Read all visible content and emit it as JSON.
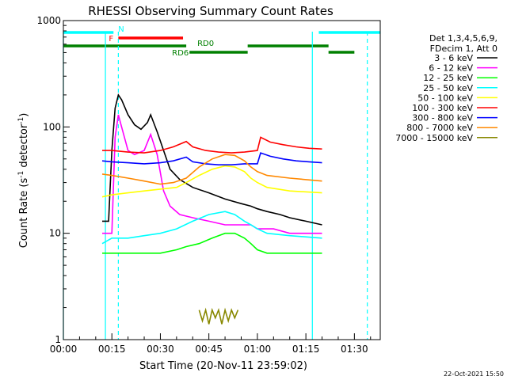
{
  "chart_data": {
    "type": "line",
    "title": "RHESSI Observing Summary Count Rates",
    "xlabel": "Start Time (20-Nov-11 23:59:02)",
    "ylabel_main": "Count Rate (s",
    "ylabel_sup1": "-1",
    "ylabel_mid": " detector",
    "ylabel_sup2": "-1",
    "ylabel_end": ")",
    "y_scale": "log",
    "ylim": [
      1,
      1000
    ],
    "xlim_minutes": [
      0,
      98
    ],
    "x_ticks": [
      {
        "label": "00:00",
        "min": 0
      },
      {
        "label": "00:15",
        "min": 15
      },
      {
        "label": "00:30",
        "min": 30
      },
      {
        "label": "00:45",
        "min": 45
      },
      {
        "label": "01:00",
        "min": 60
      },
      {
        "label": "01:15",
        "min": 75
      },
      {
        "label": "01:30",
        "min": 90
      }
    ],
    "y_ticks": [
      {
        "label": "1",
        "value": 1
      },
      {
        "label": "10",
        "value": 10
      },
      {
        "label": "100",
        "value": 100
      },
      {
        "label": "1000",
        "value": 1000
      }
    ],
    "legend_header": [
      "Det 1,3,4,5,6,9,",
      "FDecim 1, Att 0"
    ],
    "legend_position": "right",
    "series": [
      {
        "name": "3 - 6 keV",
        "color": "#000000",
        "points": [
          [
            12,
            13
          ],
          [
            14,
            13
          ],
          [
            15,
            60
          ],
          [
            16,
            150
          ],
          [
            17,
            200
          ],
          [
            18,
            180
          ],
          [
            20,
            130
          ],
          [
            22,
            105
          ],
          [
            24,
            95
          ],
          [
            26,
            110
          ],
          [
            27,
            130
          ],
          [
            29,
            90
          ],
          [
            31,
            60
          ],
          [
            33,
            40
          ],
          [
            36,
            32
          ],
          [
            40,
            27
          ],
          [
            45,
            24
          ],
          [
            50,
            21
          ],
          [
            55,
            19
          ],
          [
            58,
            18
          ],
          [
            60,
            17
          ],
          [
            63,
            16
          ],
          [
            67,
            15
          ],
          [
            70,
            14
          ],
          [
            75,
            13
          ],
          [
            80,
            12
          ]
        ]
      },
      {
        "name": "6 - 12 keV",
        "color": "#ff00ff",
        "points": [
          [
            12,
            10
          ],
          [
            15,
            10
          ],
          [
            16,
            80
          ],
          [
            17,
            130
          ],
          [
            18,
            100
          ],
          [
            20,
            60
          ],
          [
            22,
            55
          ],
          [
            25,
            60
          ],
          [
            27,
            85
          ],
          [
            29,
            55
          ],
          [
            31,
            25
          ],
          [
            33,
            18
          ],
          [
            36,
            15
          ],
          [
            40,
            14
          ],
          [
            45,
            13
          ],
          [
            50,
            12
          ],
          [
            55,
            12
          ],
          [
            58,
            12
          ],
          [
            60,
            11
          ],
          [
            65,
            11
          ],
          [
            70,
            10
          ],
          [
            75,
            10
          ],
          [
            80,
            10
          ]
        ]
      },
      {
        "name": "12 - 25 keV",
        "color": "#00ff00",
        "points": [
          [
            12,
            6.5
          ],
          [
            20,
            6.5
          ],
          [
            25,
            6.5
          ],
          [
            30,
            6.5
          ],
          [
            35,
            7
          ],
          [
            38,
            7.5
          ],
          [
            42,
            8
          ],
          [
            46,
            9
          ],
          [
            50,
            10
          ],
          [
            53,
            10
          ],
          [
            56,
            9
          ],
          [
            58,
            8
          ],
          [
            60,
            7
          ],
          [
            63,
            6.5
          ],
          [
            70,
            6.5
          ],
          [
            80,
            6.5
          ]
        ]
      },
      {
        "name": "25 - 50 keV",
        "color": "#00ffff",
        "points": [
          [
            12,
            8
          ],
          [
            15,
            9
          ],
          [
            20,
            9
          ],
          [
            25,
            9.5
          ],
          [
            30,
            10
          ],
          [
            35,
            11
          ],
          [
            40,
            13
          ],
          [
            45,
            15
          ],
          [
            50,
            16
          ],
          [
            53,
            15
          ],
          [
            56,
            13
          ],
          [
            58,
            12
          ],
          [
            60,
            11
          ],
          [
            63,
            10
          ],
          [
            70,
            9.5
          ],
          [
            80,
            9
          ]
        ]
      },
      {
        "name": "50 - 100 keV",
        "color": "#ffff00",
        "points": [
          [
            12,
            22
          ],
          [
            15,
            23
          ],
          [
            20,
            24
          ],
          [
            25,
            25
          ],
          [
            30,
            26
          ],
          [
            35,
            27
          ],
          [
            38,
            30
          ],
          [
            42,
            35
          ],
          [
            46,
            40
          ],
          [
            50,
            43
          ],
          [
            53,
            42
          ],
          [
            56,
            38
          ],
          [
            58,
            33
          ],
          [
            60,
            30
          ],
          [
            63,
            27
          ],
          [
            70,
            25
          ],
          [
            80,
            24
          ]
        ]
      },
      {
        "name": "100 - 300 keV",
        "color": "#ff0000",
        "points": [
          [
            12,
            60
          ],
          [
            15,
            60
          ],
          [
            20,
            58
          ],
          [
            25,
            57
          ],
          [
            30,
            60
          ],
          [
            34,
            65
          ],
          [
            38,
            73
          ],
          [
            40,
            65
          ],
          [
            44,
            60
          ],
          [
            48,
            58
          ],
          [
            52,
            57
          ],
          [
            56,
            58
          ],
          [
            60,
            60
          ],
          [
            61,
            80
          ],
          [
            64,
            72
          ],
          [
            68,
            68
          ],
          [
            72,
            65
          ],
          [
            76,
            63
          ],
          [
            80,
            62
          ]
        ]
      },
      {
        "name": "300 - 800 keV",
        "color": "#0000ff",
        "points": [
          [
            12,
            48
          ],
          [
            15,
            47
          ],
          [
            20,
            46
          ],
          [
            25,
            45
          ],
          [
            30,
            46
          ],
          [
            34,
            48
          ],
          [
            38,
            52
          ],
          [
            40,
            47
          ],
          [
            44,
            45
          ],
          [
            48,
            44
          ],
          [
            52,
            44
          ],
          [
            56,
            45
          ],
          [
            60,
            45
          ],
          [
            61,
            57
          ],
          [
            64,
            53
          ],
          [
            68,
            50
          ],
          [
            72,
            48
          ],
          [
            76,
            47
          ],
          [
            80,
            46
          ]
        ]
      },
      {
        "name": "800 - 7000 keV",
        "color": "#ff8800",
        "points": [
          [
            12,
            36
          ],
          [
            15,
            35
          ],
          [
            20,
            33
          ],
          [
            25,
            31
          ],
          [
            30,
            29
          ],
          [
            34,
            30
          ],
          [
            38,
            33
          ],
          [
            42,
            42
          ],
          [
            46,
            50
          ],
          [
            50,
            55
          ],
          [
            53,
            54
          ],
          [
            56,
            48
          ],
          [
            58,
            42
          ],
          [
            60,
            38
          ],
          [
            63,
            35
          ],
          [
            70,
            33
          ],
          [
            80,
            31
          ]
        ]
      },
      {
        "name": "7000 - 15000 keV",
        "color": "#888800",
        "points": [
          [
            42,
            1.9
          ],
          [
            43,
            1.5
          ],
          [
            44,
            1.9
          ],
          [
            45,
            1.4
          ],
          [
            46,
            1.9
          ],
          [
            47,
            1.6
          ],
          [
            48,
            1.9
          ],
          [
            49,
            1.4
          ],
          [
            50,
            1.9
          ],
          [
            51,
            1.5
          ],
          [
            52,
            1.9
          ],
          [
            53,
            1.6
          ],
          [
            54,
            1.9
          ]
        ]
      }
    ],
    "flags": [
      {
        "name": "N",
        "color": "#00ffff",
        "row": 0,
        "segments": [
          [
            0,
            15.5
          ],
          [
            79,
            98
          ]
        ]
      },
      {
        "name": "F",
        "color": "#ff0000",
        "row": 1,
        "segments": [
          [
            17,
            37
          ]
        ]
      },
      {
        "name": "RD0",
        "color": "#008000",
        "row": 2,
        "segments": [
          [
            0,
            38
          ],
          [
            57,
            82
          ]
        ]
      },
      {
        "name": "RD6",
        "color": "#008000",
        "row": 3,
        "segments": [
          [
            39,
            57
          ],
          [
            82,
            90
          ]
        ]
      }
    ],
    "vertical_markers": [
      {
        "min": 0,
        "color": "#00ffff",
        "style": "solid"
      },
      {
        "min": 13,
        "color": "#00ffff",
        "style": "solid"
      },
      {
        "min": 17,
        "color": "#00ffff",
        "style": "dashed"
      },
      {
        "min": 77,
        "color": "#00ffff",
        "style": "solid"
      },
      {
        "min": 94,
        "color": "#00ffff",
        "style": "dashed"
      }
    ]
  },
  "footer_timestamp": "22-Oct-2021 15:50"
}
